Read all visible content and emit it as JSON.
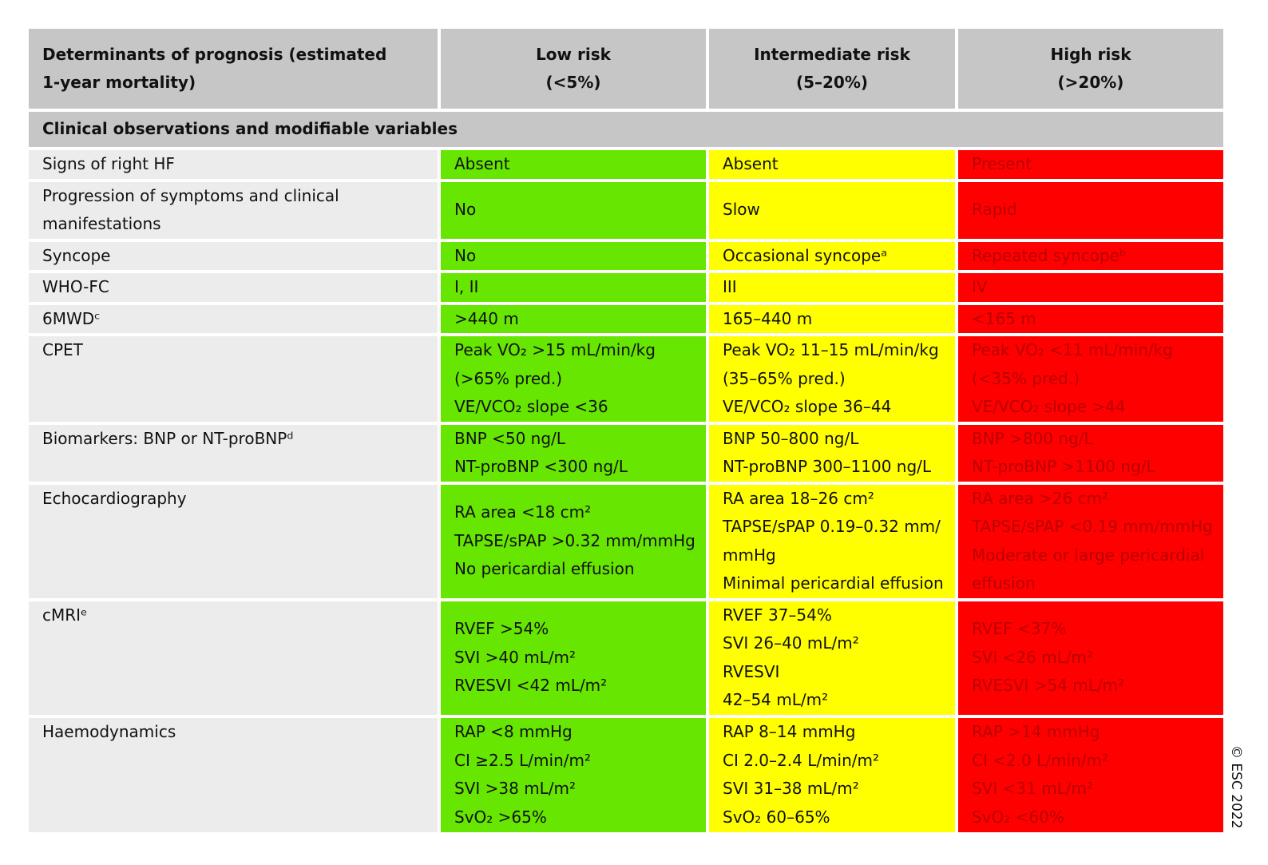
{
  "header": {
    "columns": [
      [
        "Determinants of prognosis (estimated",
        "1-year mortality)"
      ],
      [
        "Low risk",
        "(<5%)"
      ],
      [
        "Intermediate risk",
        "(5–20%)"
      ],
      [
        "High risk",
        "(>20%)"
      ]
    ]
  },
  "section": "Clinical observations and modifiable variables",
  "rows": [
    {
      "label": [
        "Signs of right HF"
      ],
      "cells": [
        [
          "Absent"
        ],
        [
          "Absent"
        ],
        [
          "Present"
        ]
      ]
    },
    {
      "label": [
        "Progression of symptoms and clinical",
        "manifestations"
      ],
      "cells": [
        [
          "No"
        ],
        [
          "Slow"
        ],
        [
          "Rapid"
        ]
      ]
    },
    {
      "label": [
        "Syncope"
      ],
      "cells": [
        [
          "No"
        ],
        [
          "Occasional syncopeᵃ"
        ],
        [
          "Repeated syncopeᵇ"
        ]
      ]
    },
    {
      "label": [
        "WHO-FC"
      ],
      "cells": [
        [
          "I, II"
        ],
        [
          "III"
        ],
        [
          "IV"
        ]
      ]
    },
    {
      "label": [
        "6MWDᶜ"
      ],
      "cells": [
        [
          ">440 m"
        ],
        [
          "165–440 m"
        ],
        [
          "<165 m"
        ]
      ]
    },
    {
      "label": [
        "CPET"
      ],
      "cells": [
        [
          "Peak VO₂ >15 mL/min/kg",
          "(>65% pred.)",
          "VE/VCO₂ slope <36"
        ],
        [
          "Peak VO₂ 11–15 mL/min/kg",
          "(35–65% pred.)",
          "VE/VCO₂ slope 36–44"
        ],
        [
          "Peak VO₂ <11 mL/min/kg",
          "(<35% pred.)",
          "VE/VCO₂ slope >44"
        ]
      ]
    },
    {
      "label": [
        "Biomarkers: BNP or NT-proBNPᵈ"
      ],
      "cells": [
        [
          "BNP <50 ng/L",
          "NT-proBNP <300 ng/L"
        ],
        [
          "BNP 50–800 ng/L",
          "NT-proBNP 300–1100 ng/L"
        ],
        [
          "BNP >800 ng/L",
          "NT-proBNP >1100 ng/L"
        ]
      ]
    },
    {
      "label": [
        "Echocardiography"
      ],
      "cells": [
        [
          "RA area <18 cm²",
          "TAPSE/sPAP >0.32 mm/mmHg",
          "No pericardial effusion"
        ],
        [
          "RA area 18–26 cm²",
          "TAPSE/sPAP 0.19–0.32 mm/",
          "mmHg",
          "Minimal pericardial effusion"
        ],
        [
          "RA area >26 cm²",
          "TAPSE/sPAP <0.19 mm/mmHg",
          "Moderate or large pericardial",
          "effusion"
        ]
      ]
    },
    {
      "label": [
        "cMRIᵉ"
      ],
      "cells": [
        [
          "RVEF >54%",
          "SVI >40 mL/m²",
          "RVESVI <42 mL/m²"
        ],
        [
          "RVEF 37–54%",
          "SVI 26–40 mL/m²",
          "RVESVI",
          "42–54 mL/m²"
        ],
        [
          "RVEF <37%",
          "SVI <26 mL/m²",
          "RVESVI >54 mL/m²"
        ]
      ]
    },
    {
      "label": [
        "Haemodynamics"
      ],
      "cells": [
        [
          "RAP <8 mmHg",
          "CI ≥2.5 L/min/m²",
          "SVI >38 mL/m²",
          "SvO₂ >65%"
        ],
        [
          "RAP 8–14 mmHg",
          "CI 2.0–2.4 L/min/m²",
          "SVI 31–38 mL/m²",
          "SvO₂ 60–65%"
        ],
        [
          "RAP >14 mmHg",
          "CI <2.0 L/min/m²",
          "SVI <31 mL/m²",
          "SvO₂ <60%"
        ]
      ]
    }
  ],
  "copyright": "© ESC 2022"
}
